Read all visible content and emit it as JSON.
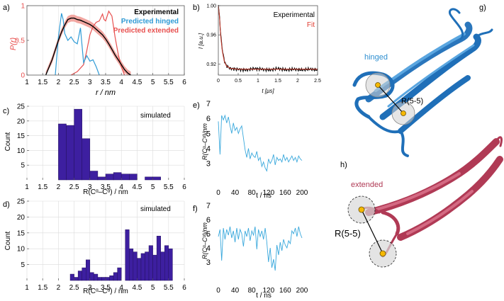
{
  "colors": {
    "experimental": "#000000",
    "hinged": "#2f9bd6",
    "extended": "#e8504f",
    "extended_band": "#f2a7a2",
    "fit": "#c0392b",
    "bar_fill": "#3d1fa0",
    "trace": "#39a8dc",
    "hinged_protein": "#1f6fb8",
    "extended_protein": "#b03a55",
    "spin_label": "#f5b800"
  },
  "panels": {
    "a": {
      "label": "a)"
    },
    "b": {
      "label": "b)"
    },
    "c": {
      "label": "c)"
    },
    "d": {
      "label": "d)"
    },
    "e": {
      "label": "e)"
    },
    "f": {
      "label": "f)"
    },
    "g": {
      "label": "g)"
    },
    "h": {
      "label": "h)"
    }
  },
  "chart_data": [
    {
      "id": "a",
      "type": "line",
      "ylabel": "P(r)",
      "xlabel": "r / nm",
      "xlim": [
        1,
        6
      ],
      "ylim": [
        0,
        1
      ],
      "xticks": [
        "1",
        "1.5",
        "2",
        "2.5",
        "3",
        "3.5",
        "4",
        "4.5",
        "5",
        "5.5",
        "6"
      ],
      "yticks": [
        "0",
        "0.5",
        "1"
      ],
      "legend": [
        "Experimental",
        "Predicted hinged",
        "Predicted extended"
      ],
      "series": [
        {
          "name": "Experimental",
          "x": [
            1.6,
            1.8,
            2.0,
            2.1,
            2.2,
            2.3,
            2.4,
            2.5,
            2.6,
            2.7,
            2.8,
            2.9,
            3.0,
            3.1,
            3.2,
            3.3,
            3.4,
            3.5,
            3.6,
            3.7,
            3.8,
            3.9,
            4.0,
            4.1,
            4.2,
            4.3
          ],
          "y": [
            0.0,
            0.22,
            0.5,
            0.62,
            0.72,
            0.8,
            0.82,
            0.82,
            0.8,
            0.79,
            0.77,
            0.75,
            0.73,
            0.7,
            0.66,
            0.62,
            0.58,
            0.52,
            0.45,
            0.37,
            0.29,
            0.22,
            0.15,
            0.08,
            0.03,
            0.0
          ]
        },
        {
          "name": "Predicted hinged",
          "x": [
            1.9,
            2.0,
            2.1,
            2.15,
            2.2,
            2.3,
            2.4,
            2.5,
            2.6,
            2.7,
            2.8,
            2.9,
            3.0,
            3.1,
            3.2,
            3.3
          ],
          "y": [
            0.0,
            0.55,
            0.89,
            0.8,
            0.6,
            0.5,
            0.55,
            0.48,
            0.45,
            0.68,
            0.18,
            0.28,
            0.2,
            0.22,
            0.12,
            0.0
          ]
        },
        {
          "name": "Predicted extended",
          "x": [
            2.4,
            2.6,
            2.8,
            2.9,
            3.0,
            3.1,
            3.2,
            3.3,
            3.4,
            3.45,
            3.5,
            3.6,
            3.7,
            3.8,
            3.9,
            4.0,
            4.1
          ],
          "y": [
            0.0,
            0.05,
            0.15,
            0.35,
            0.58,
            0.7,
            0.76,
            0.78,
            0.88,
            0.8,
            0.78,
            0.92,
            0.85,
            0.55,
            0.3,
            0.12,
            0.0
          ]
        }
      ]
    },
    {
      "id": "b",
      "type": "line",
      "ylabel": "I [a.u.]",
      "xlabel": "t [μs]",
      "xlim": [
        0,
        2.5
      ],
      "ylim": [
        0.905,
        1.0
      ],
      "xticks": [
        "0",
        "0.5",
        "1",
        "1.5",
        "2",
        "2.5"
      ],
      "yticks": [
        "0.92",
        "0.96",
        "1.00"
      ],
      "legend": [
        "Experimental",
        "Fit"
      ],
      "series": [
        {
          "name": "Experimental",
          "x": [
            0,
            0.03,
            0.06,
            0.1,
            0.15,
            0.2,
            0.3,
            0.5,
            0.7,
            0.9,
            1.1,
            1.3,
            1.5,
            1.7,
            1.9,
            2.1,
            2.3,
            2.5
          ],
          "y": [
            1.0,
            0.985,
            0.96,
            0.94,
            0.925,
            0.918,
            0.914,
            0.913,
            0.912,
            0.914,
            0.913,
            0.912,
            0.914,
            0.912,
            0.913,
            0.912,
            0.913,
            0.912
          ]
        },
        {
          "name": "Fit",
          "x": [
            0,
            0.03,
            0.06,
            0.1,
            0.15,
            0.2,
            0.3,
            0.5,
            0.7,
            0.9,
            1.1,
            1.3,
            1.5,
            1.7,
            1.9,
            2.1,
            2.3,
            2.5
          ],
          "y": [
            1.0,
            0.984,
            0.958,
            0.938,
            0.924,
            0.918,
            0.914,
            0.913,
            0.913,
            0.913,
            0.913,
            0.913,
            0.913,
            0.913,
            0.913,
            0.913,
            0.913,
            0.913
          ]
        }
      ]
    },
    {
      "id": "c",
      "type": "bar",
      "annotation": "simulated",
      "ylabel": "Count",
      "xlabel": "R(Cᵅ–Cᵅ) / nm",
      "xlim": [
        1,
        6
      ],
      "ylim": [
        0,
        25
      ],
      "xticks": [
        "1",
        "1.5",
        "2",
        "2.5",
        "3",
        "3.5",
        "4",
        "4.5",
        "5",
        "5.5",
        "6"
      ],
      "yticks": [
        "5",
        "10",
        "15",
        "20",
        "25"
      ],
      "bin_width": 0.25,
      "bin_starts": [
        2.0,
        2.25,
        2.5,
        2.75,
        3.0,
        3.25,
        3.5,
        3.75,
        4.0,
        4.25,
        4.5,
        4.75,
        5.0
      ],
      "values": [
        19,
        18.5,
        24,
        14,
        3,
        1,
        2,
        2.5,
        2,
        2,
        0,
        1,
        1
      ]
    },
    {
      "id": "d",
      "type": "bar",
      "annotation": "simulated",
      "ylabel": "Count",
      "xlabel": "R(Cᵅ–Cᵅ) / nm",
      "xlim": [
        1,
        6
      ],
      "ylim": [
        0,
        25
      ],
      "xticks": [
        "1",
        "1.5",
        "2",
        "2.5",
        "3",
        "3.5",
        "4",
        "4.5",
        "5",
        "5.5",
        "6"
      ],
      "yticks": [
        "5",
        "10",
        "15",
        "20",
        "25"
      ],
      "bin_width": 0.125,
      "bin_starts": [
        2.375,
        2.5,
        2.625,
        2.75,
        2.875,
        3.0,
        3.125,
        3.25,
        3.375,
        3.5,
        3.625,
        3.75,
        3.875,
        4.0,
        4.125,
        4.25,
        4.375,
        4.5,
        4.625,
        4.75,
        4.875,
        5.0,
        5.125,
        5.25,
        5.375,
        5.5
      ],
      "values": [
        2,
        1,
        3,
        4,
        6.5,
        2.5,
        2,
        1,
        1,
        1,
        1.5,
        2.5,
        4,
        0,
        16,
        10,
        9,
        7,
        8.5,
        9,
        11,
        8,
        14,
        9,
        11,
        10
      ]
    },
    {
      "id": "e",
      "type": "line",
      "ylabel": "R(Cᵅ–Cᵅ)/nm",
      "xlabel": "t / ns",
      "xlim": [
        0,
        200
      ],
      "ylim": [
        2,
        7
      ],
      "xticks": [
        "0",
        "40",
        "80",
        "120",
        "160",
        "200"
      ],
      "yticks": [
        "3",
        "4",
        "5",
        "6",
        "7"
      ],
      "series": [
        {
          "name": "trajectory",
          "x": [
            0,
            4,
            8,
            12,
            16,
            20,
            24,
            28,
            32,
            36,
            40,
            44,
            48,
            52,
            56,
            60,
            64,
            68,
            72,
            76,
            80,
            84,
            88,
            92,
            96,
            100,
            104,
            108,
            112,
            116,
            120,
            124,
            128,
            132,
            136,
            140,
            144,
            148,
            152,
            156,
            160,
            164,
            168,
            172,
            176,
            180,
            184,
            188,
            192,
            196,
            200
          ],
          "y": [
            5.8,
            3.6,
            6.2,
            5.9,
            6.2,
            5.7,
            6.1,
            5.5,
            5.0,
            5.7,
            5.2,
            5.4,
            5.0,
            5.3,
            5.5,
            4.7,
            3.9,
            3.4,
            4.0,
            3.3,
            3.7,
            3.5,
            3.4,
            3.8,
            3.2,
            3.4,
            2.8,
            3.1,
            2.7,
            2.5,
            3.3,
            3.0,
            3.2,
            3.6,
            2.9,
            3.4,
            3.2,
            3.3,
            3.1,
            3.6,
            3.2,
            3.4,
            3.1,
            3.3,
            3.5,
            3.2,
            3.4,
            3.1,
            3.5,
            3.3,
            3.2
          ]
        }
      ]
    },
    {
      "id": "f",
      "type": "line",
      "ylabel": "R(Cᵅ–Cᵅ)/nm",
      "xlabel": "t / ns",
      "xlim": [
        0,
        200
      ],
      "ylim": [
        2,
        7
      ],
      "xticks": [
        "0",
        "40",
        "80",
        "120",
        "160",
        "200"
      ],
      "yticks": [
        "3",
        "4",
        "5",
        "6",
        "7"
      ],
      "series": [
        {
          "name": "trajectory",
          "x": [
            0,
            4,
            8,
            12,
            16,
            20,
            24,
            28,
            32,
            36,
            40,
            44,
            48,
            52,
            56,
            60,
            64,
            68,
            72,
            76,
            80,
            84,
            88,
            92,
            96,
            100,
            104,
            108,
            112,
            116,
            120,
            124,
            128,
            132,
            136,
            140,
            144,
            148,
            152,
            156,
            160,
            164,
            168,
            172,
            176,
            180,
            184,
            188,
            192,
            196,
            200
          ],
          "y": [
            4.8,
            5.3,
            3.1,
            5.4,
            4.6,
            5.3,
            4.9,
            5.5,
            4.7,
            5.2,
            4.4,
            5.4,
            4.6,
            5.3,
            5.0,
            4.1,
            5.2,
            4.8,
            5.4,
            4.5,
            5.2,
            4.9,
            5.5,
            3.9,
            5.3,
            4.8,
            5.2,
            4.6,
            5.4,
            4.4,
            3.0,
            4.0,
            2.6,
            3.2,
            2.4,
            4.2,
            3.5,
            4.4,
            3.8,
            4.6,
            4.2,
            4.0,
            4.5,
            4.3,
            5.2,
            5.0,
            5.4,
            4.8,
            5.5,
            5.0,
            4.7
          ]
        }
      ]
    }
  ],
  "structures": {
    "g": {
      "conformation": "hinged",
      "distance_label": "R(5-5)"
    },
    "h": {
      "conformation": "extended",
      "distance_label": "R(5-5)"
    }
  }
}
